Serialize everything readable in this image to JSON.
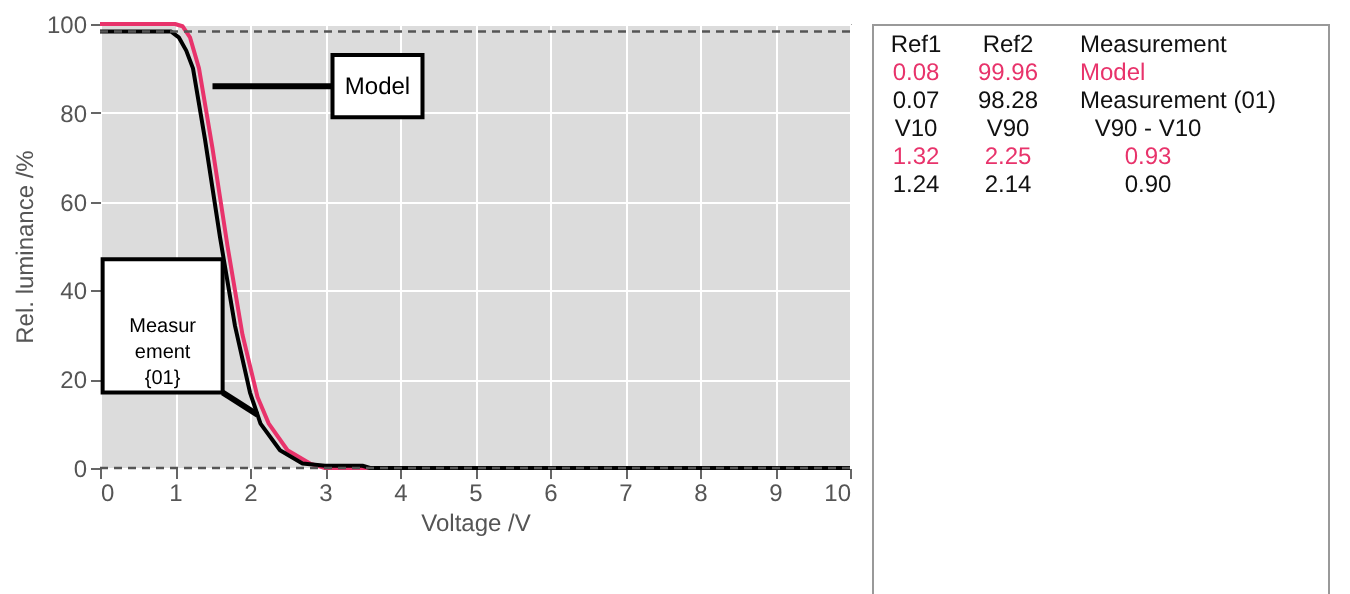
{
  "chart_data": [
    {
      "type": "line",
      "xlabel": "Voltage /V",
      "ylabel": "Rel. luminance /%",
      "xlim": [
        0,
        10
      ],
      "xticks": [
        0,
        1,
        2,
        3,
        4,
        5,
        6,
        7,
        8,
        9,
        10
      ],
      "ylim": [
        0,
        100
      ],
      "yticks": [
        0,
        20,
        40,
        60,
        80,
        100
      ],
      "grid": true,
      "legend": false,
      "line_style": "solid",
      "marker": "none",
      "series": [
        {
          "color": "#e8336b",
          "x": [
            0,
            1.0,
            1.1,
            1.2,
            1.32,
            1.5,
            1.7,
            1.9,
            2.1,
            2.25,
            2.5,
            2.8,
            3.0,
            10
          ],
          "values": [
            100,
            100,
            99.5,
            97,
            90,
            72,
            50,
            30,
            16,
            10,
            4,
            1,
            0,
            0
          ]
        },
        {
          "color": "#000000",
          "x": [
            0,
            0.95,
            1.05,
            1.15,
            1.24,
            1.4,
            1.6,
            1.8,
            2.0,
            2.14,
            2.4,
            2.7,
            3.0,
            3.5,
            3.6,
            10
          ],
          "values": [
            98.3,
            98.3,
            97,
            94,
            90,
            74,
            52,
            32,
            17,
            10,
            4,
            1,
            0.5,
            0.5,
            0,
            0
          ]
        }
      ],
      "ref_lines": [
        {
          "axis": "y",
          "value": 98.3,
          "color": "#555555",
          "line_style": "dashed"
        },
        {
          "axis": "y",
          "value": 0,
          "color": "#555555",
          "line_style": "dashed"
        }
      ],
      "annotations": [
        "Model",
        "Measurement {01}"
      ]
    },
    {
      "type": "other",
      "annotations": [
        "Ref1",
        "Ref2",
        "Measurement",
        "0.08",
        "99.96",
        "Model",
        "0.07",
        "98.28",
        "Measurement (01)",
        "V10",
        "V90",
        "V90 - V10",
        "1.32",
        "2.25",
        "0.93",
        "1.24",
        "2.14",
        "0.90"
      ]
    }
  ]
}
